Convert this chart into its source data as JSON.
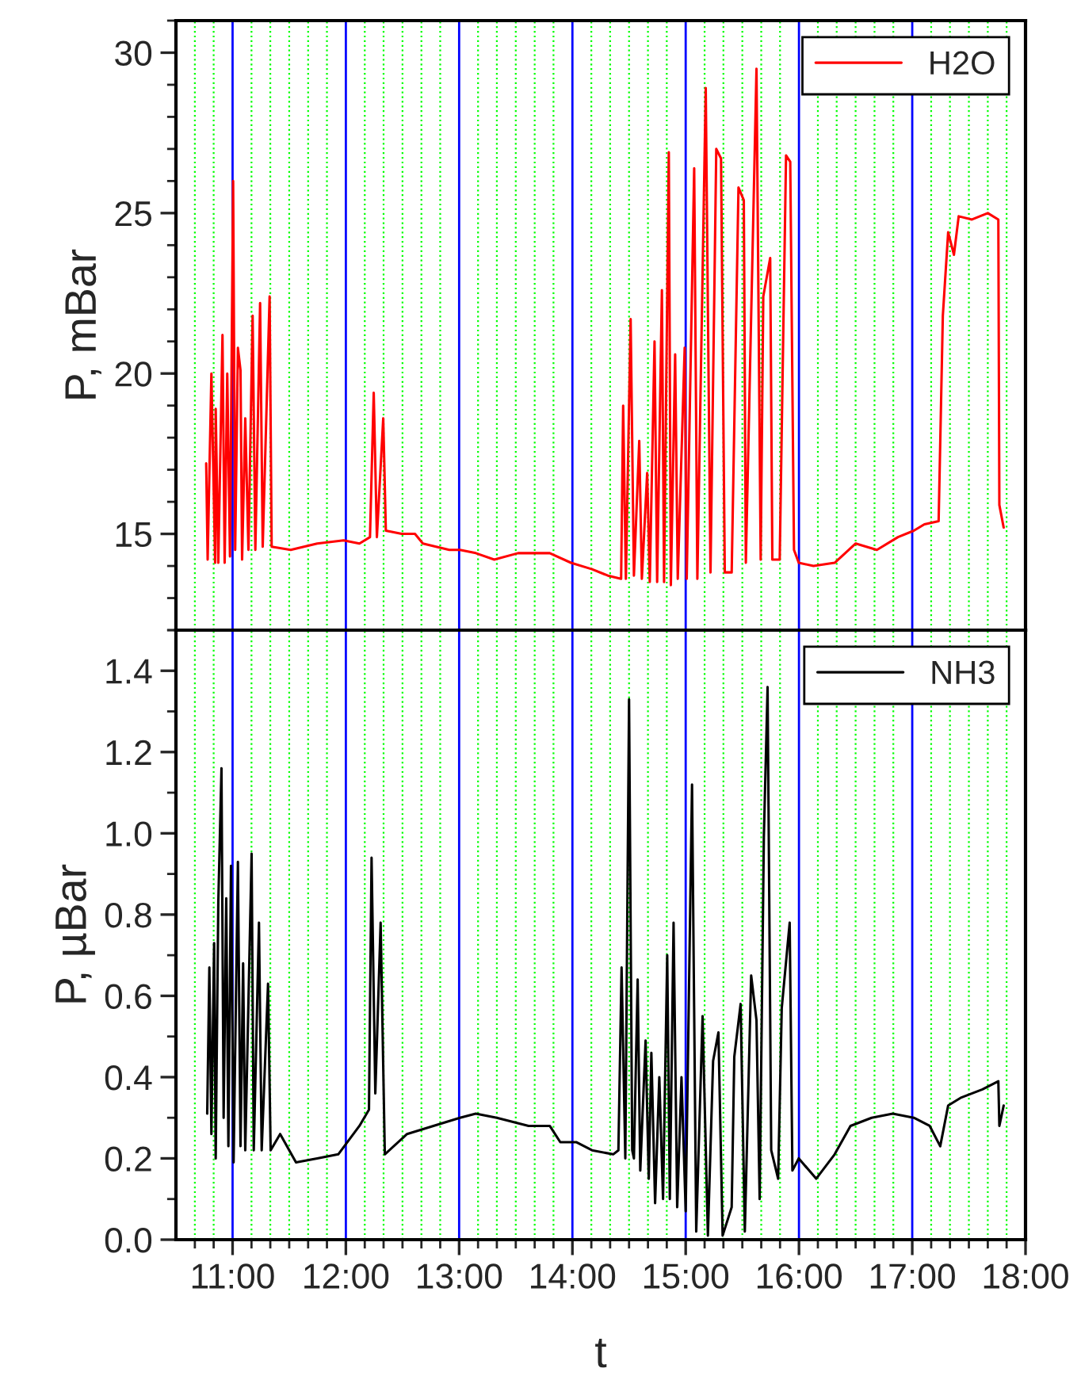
{
  "chart_data": [
    {
      "type": "line",
      "ylabel": "P, mBar",
      "xlim": [
        10.5,
        18
      ],
      "xticks": [
        11,
        12,
        13,
        14,
        15,
        16,
        17,
        18,
        {
          "value": 10.667,
          "label": null
        },
        {
          "value": 10.833,
          "label": null
        },
        {
          "value": 11.167,
          "label": null
        },
        {
          "value": 11.333,
          "label": null
        },
        {
          "value": 11.5,
          "label": null
        },
        {
          "value": 11.667,
          "label": null
        },
        {
          "value": 11.833,
          "label": null
        },
        {
          "value": 12.167,
          "label": null
        },
        {
          "value": 12.333,
          "label": null
        },
        {
          "value": 12.5,
          "label": null
        },
        {
          "value": 12.667,
          "label": null
        },
        {
          "value": 12.833,
          "label": null
        },
        {
          "value": 13.167,
          "label": null
        },
        {
          "value": 13.333,
          "label": null
        },
        {
          "value": 13.5,
          "label": null
        },
        {
          "value": 13.667,
          "label": null
        },
        {
          "value": 13.833,
          "label": null
        },
        {
          "value": 14.167,
          "label": null
        },
        {
          "value": 14.333,
          "label": null
        },
        {
          "value": 14.5,
          "label": null
        },
        {
          "value": 14.667,
          "label": null
        },
        {
          "value": 14.833,
          "label": null
        },
        {
          "value": 15.167,
          "label": null
        },
        {
          "value": 15.333,
          "label": null
        },
        {
          "value": 15.5,
          "label": null
        },
        {
          "value": 15.667,
          "label": null
        },
        {
          "value": 15.833,
          "label": null
        },
        {
          "value": 16.167,
          "label": null
        },
        {
          "value": 16.333,
          "label": null
        },
        {
          "value": 16.5,
          "label": null
        },
        {
          "value": 16.667,
          "label": null
        },
        {
          "value": 16.833,
          "label": null
        },
        {
          "value": 17.167,
          "label": null
        },
        {
          "value": 17.333,
          "label": null
        },
        {
          "value": 17.5,
          "label": null
        },
        {
          "value": 17.667,
          "label": null
        },
        {
          "value": 17.833,
          "label": null
        }
      ],
      "ylim": [
        12,
        31
      ],
      "yticks": [
        15,
        20,
        25,
        30
      ],
      "grid": "x",
      "legend": "top right",
      "tick_labels": "y",
      "series": [
        {
          "name": "H2O",
          "color": "#ff0000",
          "x": [
            10.767,
            10.78,
            10.813,
            10.846,
            10.851,
            10.874,
            10.911,
            10.93,
            10.953,
            10.977,
            11.005,
            11.023,
            11.047,
            11.07,
            11.084,
            11.112,
            11.14,
            11.177,
            11.201,
            11.243,
            11.266,
            11.327,
            11.345,
            11.513,
            11.747,
            11.98,
            12.12,
            12.213,
            12.246,
            12.274,
            12.33,
            12.353,
            12.493,
            12.61,
            12.68,
            12.913,
            13.007,
            13.147,
            13.31,
            13.52,
            13.8,
            13.987,
            14.173,
            14.313,
            14.43,
            14.448,
            14.472,
            14.514,
            14.543,
            14.59,
            14.613,
            14.66,
            14.683,
            14.725,
            14.748,
            14.79,
            14.809,
            14.851,
            14.869,
            14.907,
            14.93,
            14.991,
            15.009,
            15.075,
            15.103,
            15.177,
            15.219,
            15.27,
            15.312,
            15.345,
            15.406,
            15.466,
            15.513,
            15.531,
            15.625,
            15.662,
            15.685,
            15.746,
            15.765,
            15.83,
            15.886,
            15.923,
            15.956,
            15.998,
            16.128,
            16.315,
            16.501,
            16.688,
            16.874,
            17.014,
            17.107,
            17.233,
            17.27,
            17.317,
            17.368,
            17.41,
            17.527,
            17.667,
            17.76,
            17.769,
            17.807
          ],
          "values": [
            17.2,
            14.2,
            20.0,
            14.1,
            18.9,
            14.1,
            21.2,
            14.1,
            20.0,
            14.3,
            26.0,
            14.5,
            20.8,
            20.1,
            14.2,
            18.6,
            14.5,
            21.8,
            14.5,
            22.2,
            14.6,
            22.4,
            14.6,
            14.5,
            14.7,
            14.8,
            14.7,
            14.9,
            19.4,
            14.9,
            18.6,
            15.1,
            15.0,
            15.0,
            14.7,
            14.5,
            14.5,
            14.4,
            14.2,
            14.4,
            14.4,
            14.1,
            13.9,
            13.7,
            13.6,
            19.0,
            13.6,
            21.7,
            13.7,
            17.9,
            13.6,
            16.9,
            13.5,
            21.0,
            13.5,
            22.6,
            13.5,
            26.9,
            13.4,
            20.6,
            13.6,
            20.8,
            13.6,
            26.4,
            13.6,
            28.9,
            13.8,
            27.0,
            26.7,
            13.8,
            13.8,
            25.8,
            25.4,
            14.1,
            29.5,
            14.2,
            22.4,
            23.6,
            14.2,
            14.2,
            26.8,
            26.6,
            14.5,
            14.1,
            14.0,
            14.1,
            14.7,
            14.5,
            14.9,
            15.1,
            15.3,
            15.4,
            21.8,
            24.4,
            23.7,
            24.9,
            24.8,
            25.0,
            24.8,
            15.9,
            15.2
          ]
        }
      ]
    },
    {
      "type": "line",
      "xlabel": "t",
      "ylabel": "P, µBar",
      "xlim": [
        10.5,
        18
      ],
      "xticks": [
        {
          "value": 11,
          "label": "11:00"
        },
        {
          "value": 12,
          "label": "12:00"
        },
        {
          "value": 13,
          "label": "13:00"
        },
        {
          "value": 14,
          "label": "14:00"
        },
        {
          "value": 15,
          "label": "15:00"
        },
        {
          "value": 16,
          "label": "16:00"
        },
        {
          "value": 17,
          "label": "17:00"
        },
        {
          "value": 18,
          "label": "18:00"
        },
        {
          "value": 10.667,
          "label": null
        },
        {
          "value": 10.833,
          "label": null
        },
        {
          "value": 11.167,
          "label": null
        },
        {
          "value": 11.333,
          "label": null
        },
        {
          "value": 11.5,
          "label": null
        },
        {
          "value": 11.667,
          "label": null
        },
        {
          "value": 11.833,
          "label": null
        },
        {
          "value": 12.167,
          "label": null
        },
        {
          "value": 12.333,
          "label": null
        },
        {
          "value": 12.5,
          "label": null
        },
        {
          "value": 12.667,
          "label": null
        },
        {
          "value": 12.833,
          "label": null
        },
        {
          "value": 13.167,
          "label": null
        },
        {
          "value": 13.333,
          "label": null
        },
        {
          "value": 13.5,
          "label": null
        },
        {
          "value": 13.667,
          "label": null
        },
        {
          "value": 13.833,
          "label": null
        },
        {
          "value": 14.167,
          "label": null
        },
        {
          "value": 14.333,
          "label": null
        },
        {
          "value": 14.5,
          "label": null
        },
        {
          "value": 14.667,
          "label": null
        },
        {
          "value": 14.833,
          "label": null
        },
        {
          "value": 15.167,
          "label": null
        },
        {
          "value": 15.333,
          "label": null
        },
        {
          "value": 15.5,
          "label": null
        },
        {
          "value": 15.667,
          "label": null
        },
        {
          "value": 15.833,
          "label": null
        },
        {
          "value": 16.167,
          "label": null
        },
        {
          "value": 16.333,
          "label": null
        },
        {
          "value": 16.5,
          "label": null
        },
        {
          "value": 16.667,
          "label": null
        },
        {
          "value": 16.833,
          "label": null
        },
        {
          "value": 17.167,
          "label": null
        },
        {
          "value": 17.333,
          "label": null
        },
        {
          "value": 17.5,
          "label": null
        },
        {
          "value": 17.667,
          "label": null
        },
        {
          "value": 17.833,
          "label": null
        }
      ],
      "ylim": [
        0,
        1.5
      ],
      "yticks": [
        {
          "value": 0,
          "label": "0.0"
        },
        0.2,
        0.4,
        0.6,
        0.8,
        {
          "value": 1,
          "label": "1.0"
        },
        1.2,
        1.4
      ],
      "grid": "x",
      "legend": "top right",
      "series": [
        {
          "name": "NH3",
          "color": "#000000",
          "x": [
            10.776,
            10.795,
            10.813,
            10.837,
            10.851,
            10.874,
            10.902,
            10.921,
            10.944,
            10.963,
            10.986,
            11.009,
            11.047,
            11.07,
            11.093,
            11.112,
            11.168,
            11.187,
            11.233,
            11.257,
            11.313,
            11.336,
            11.42,
            11.56,
            11.747,
            11.933,
            12.12,
            12.204,
            12.227,
            12.26,
            12.307,
            12.344,
            12.54,
            12.773,
            13.007,
            13.147,
            13.333,
            13.613,
            13.8,
            13.893,
            14.033,
            14.173,
            14.36,
            14.406,
            14.434,
            14.467,
            14.5,
            14.528,
            14.543,
            14.576,
            14.599,
            14.646,
            14.674,
            14.697,
            14.73,
            14.767,
            14.8,
            14.837,
            14.86,
            14.893,
            14.925,
            14.963,
            15.0,
            15.056,
            15.093,
            15.149,
            15.196,
            15.242,
            15.289,
            15.326,
            15.406,
            15.429,
            15.485,
            15.522,
            15.578,
            15.625,
            15.653,
            15.69,
            15.723,
            15.755,
            15.816,
            15.848,
            15.918,
            15.942,
            15.998,
            16.152,
            16.315,
            16.455,
            16.641,
            16.828,
            17.014,
            17.154,
            17.247,
            17.317,
            17.434,
            17.62,
            17.76,
            17.769,
            17.807
          ],
          "values": [
            0.31,
            0.67,
            0.26,
            0.73,
            0.2,
            0.83,
            1.16,
            0.3,
            0.84,
            0.23,
            0.92,
            0.19,
            0.93,
            0.23,
            0.68,
            0.22,
            0.95,
            0.22,
            0.78,
            0.22,
            0.63,
            0.22,
            0.26,
            0.19,
            0.2,
            0.21,
            0.28,
            0.32,
            0.94,
            0.36,
            0.78,
            0.21,
            0.26,
            0.28,
            0.3,
            0.31,
            0.3,
            0.28,
            0.28,
            0.24,
            0.24,
            0.22,
            0.21,
            0.22,
            0.67,
            0.2,
            1.33,
            0.22,
            0.2,
            0.64,
            0.17,
            0.49,
            0.15,
            0.46,
            0.09,
            0.4,
            0.1,
            0.7,
            0.1,
            0.78,
            0.08,
            0.4,
            0.07,
            1.12,
            0.02,
            0.55,
            0.01,
            0.44,
            0.51,
            0.01,
            0.08,
            0.45,
            0.58,
            0.02,
            0.65,
            0.54,
            0.1,
            0.99,
            1.36,
            0.22,
            0.15,
            0.57,
            0.78,
            0.17,
            0.2,
            0.15,
            0.21,
            0.28,
            0.3,
            0.31,
            0.3,
            0.28,
            0.23,
            0.33,
            0.35,
            0.37,
            0.39,
            0.28,
            0.33
          ]
        }
      ]
    }
  ]
}
